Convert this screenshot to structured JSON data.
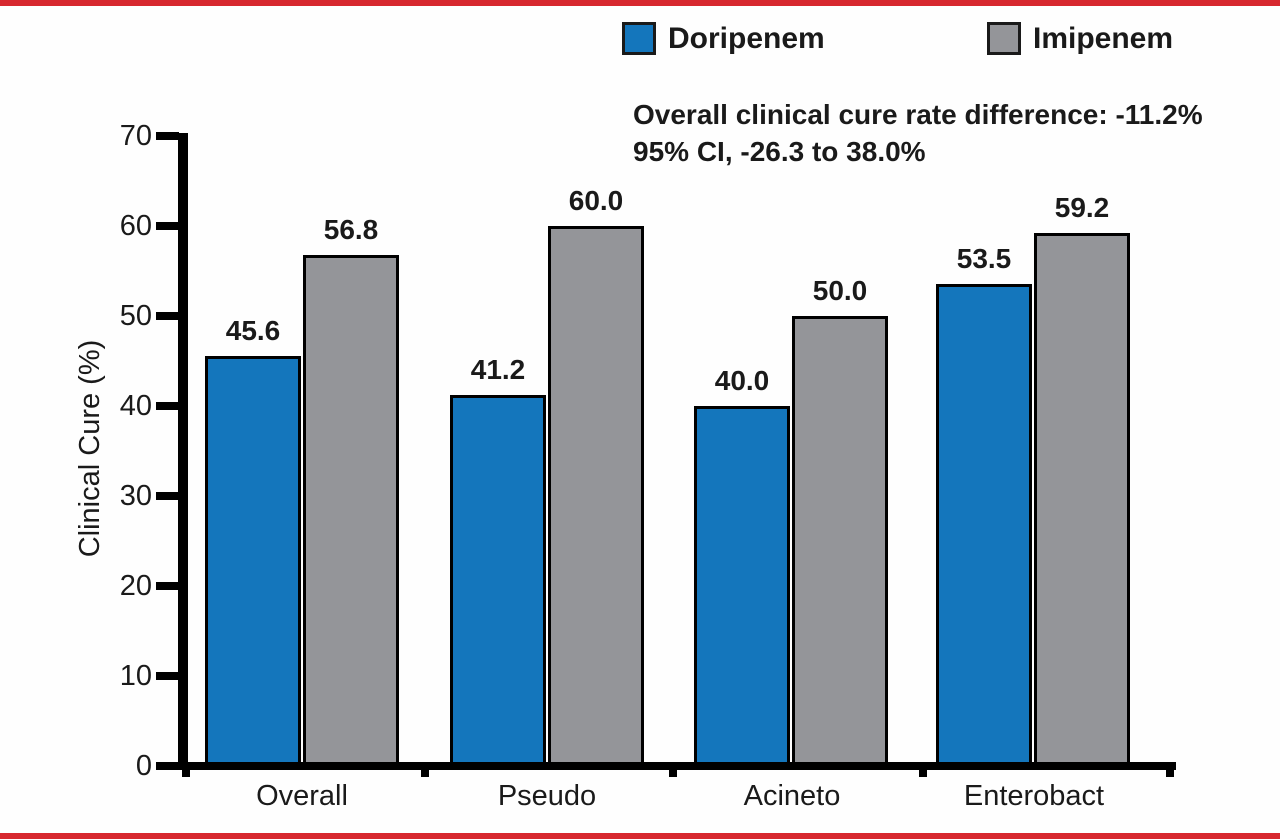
{
  "page": {
    "accent_red": "#d7282f",
    "background": "#fefefe"
  },
  "legend": {
    "items": [
      {
        "label": "Doripenem",
        "color": "#1476bc"
      },
      {
        "label": "Imipenem",
        "color": "#949599"
      }
    ]
  },
  "annotation": {
    "line1": "Overall clinical cure rate difference: -11.2%",
    "line2": "95% CI, -26.3 to 38.0%"
  },
  "chart_data": {
    "type": "bar",
    "title": "",
    "categories": [
      "Overall",
      "Pseudo",
      "Acineto",
      "Enterobact"
    ],
    "series": [
      {
        "name": "Doripenem",
        "color": "#1476bc",
        "values": [
          45.6,
          41.2,
          40.0,
          53.5
        ]
      },
      {
        "name": "Imipenem",
        "color": "#949599",
        "values": [
          56.8,
          60.0,
          50.0,
          59.2
        ]
      }
    ],
    "xlabel": "",
    "ylabel": "Clinical Cure (%)",
    "ylim": [
      0,
      70
    ],
    "yticks": [
      0,
      10,
      20,
      30,
      40,
      50,
      60,
      70
    ],
    "grid": false,
    "legend_position": "top",
    "value_labels": true
  }
}
